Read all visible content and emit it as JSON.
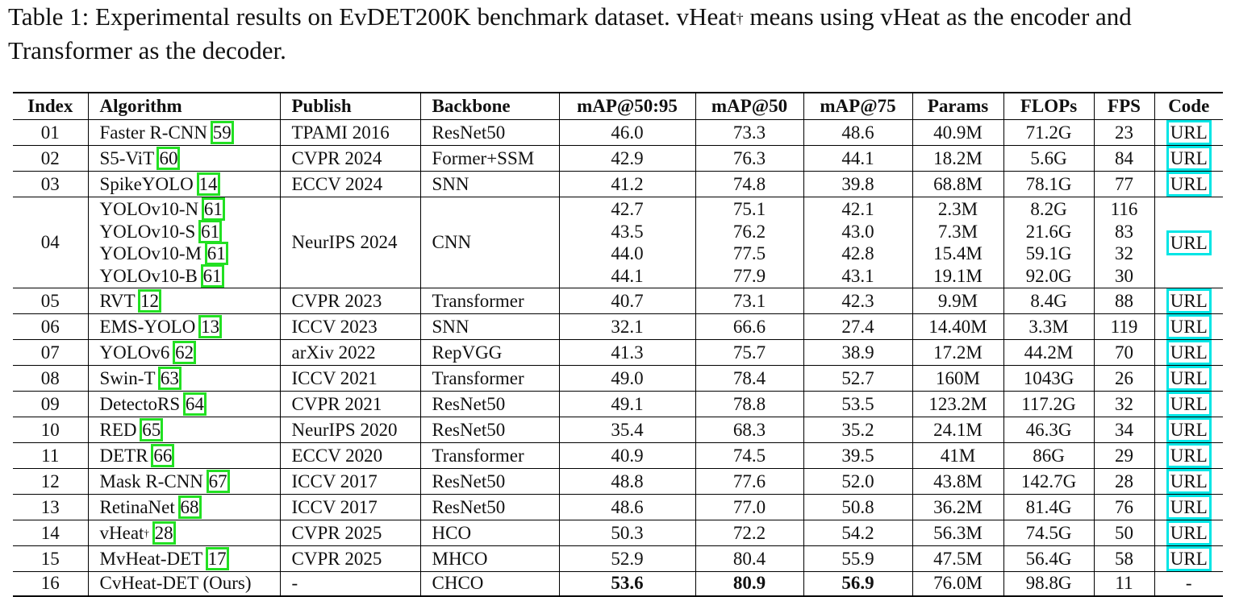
{
  "caption": {
    "text_before": "Table 1: Experimental results on EvDET200K benchmark dataset. vHeat",
    "dagger": "†",
    "text_after": " means using vHeat as the encoder and Transformer as the decoder."
  },
  "headers": {
    "index": "Index",
    "algorithm": "Algorithm",
    "publish": "Publish",
    "backbone": "Backbone",
    "map5095": "mAP@50:95",
    "map50": "mAP@50",
    "map75": "mAP@75",
    "params": "Params",
    "flops": "FLOPs",
    "fps": "FPS",
    "code": "Code"
  },
  "rows": [
    {
      "index": "01",
      "algorithm": "Faster R-CNN ",
      "ref": "59",
      "publish": "TPAMI 2016",
      "backbone": "ResNet50",
      "map5095": "46.0",
      "map50": "73.3",
      "map75": "48.6",
      "params": "40.9M",
      "flops": "71.2G",
      "fps": "23",
      "code": "URL"
    },
    {
      "index": "02",
      "algorithm": "S5-ViT ",
      "ref": "60",
      "publish": "CVPR 2024",
      "backbone": "Former+SSM",
      "map5095": "42.9",
      "map50": "76.3",
      "map75": "44.1",
      "params": "18.2M",
      "flops": "5.6G",
      "fps": "84",
      "code": "URL"
    },
    {
      "index": "03",
      "algorithm": "SpikeYOLO ",
      "ref": "14",
      "publish": "ECCV 2024",
      "backbone": "SNN",
      "map5095": "41.2",
      "map50": "74.8",
      "map75": "39.8",
      "params": "68.8M",
      "flops": "78.1G",
      "fps": "77",
      "code": "URL"
    },
    {
      "index": "04",
      "publish": "NeurIPS 2024",
      "backbone": "CNN",
      "code": "URL",
      "variants": [
        {
          "algorithm": "YOLOv10-N ",
          "ref": "61",
          "map5095": "42.7",
          "map50": "75.1",
          "map75": "42.1",
          "params": "2.3M",
          "flops": "8.2G",
          "fps": "116"
        },
        {
          "algorithm": "YOLOv10-S ",
          "ref": "61",
          "map5095": "43.5",
          "map50": "76.2",
          "map75": "43.0",
          "params": "7.3M",
          "flops": "21.6G",
          "fps": "83"
        },
        {
          "algorithm": "YOLOv10-M ",
          "ref": "61",
          "map5095": "44.0",
          "map50": "77.5",
          "map75": "42.8",
          "params": "15.4M",
          "flops": "59.1G",
          "fps": "32"
        },
        {
          "algorithm": "YOLOv10-B ",
          "ref": "61",
          "map5095": "44.1",
          "map50": "77.9",
          "map75": "43.1",
          "params": "19.1M",
          "flops": "92.0G",
          "fps": "30"
        }
      ]
    },
    {
      "index": "05",
      "algorithm": "RVT ",
      "ref": "12",
      "publish": "CVPR 2023",
      "backbone": "Transformer",
      "map5095": "40.7",
      "map50": "73.1",
      "map75": "42.3",
      "params": "9.9M",
      "flops": "8.4G",
      "fps": "88",
      "code": "URL"
    },
    {
      "index": "06",
      "algorithm": "EMS-YOLO ",
      "ref": "13",
      "publish": "ICCV 2023",
      "backbone": "SNN",
      "map5095": "32.1",
      "map50": "66.6",
      "map75": "27.4",
      "params": "14.40M",
      "flops": "3.3M",
      "fps": "119",
      "code": "URL"
    },
    {
      "index": "07",
      "algorithm": "YOLOv6 ",
      "ref": "62",
      "publish": "arXiv 2022",
      "backbone": "RepVGG",
      "map5095": "41.3",
      "map50": "75.7",
      "map75": "38.9",
      "params": "17.2M",
      "flops": "44.2M",
      "fps": "70",
      "code": "URL"
    },
    {
      "index": "08",
      "algorithm": "Swin-T ",
      "ref": "63",
      "publish": "ICCV 2021",
      "backbone": "Transformer",
      "map5095": "49.0",
      "map50": "78.4",
      "map75": "52.7",
      "params": "160M",
      "flops": "1043G",
      "fps": "26",
      "code": "URL"
    },
    {
      "index": "09",
      "algorithm": "DetectoRS ",
      "ref": "64",
      "publish": "CVPR 2021",
      "backbone": "ResNet50",
      "map5095": "49.1",
      "map50": "78.8",
      "map75": "53.5",
      "params": "123.2M",
      "flops": "117.2G",
      "fps": "32",
      "code": "URL"
    },
    {
      "index": "10",
      "algorithm": "RED ",
      "ref": "65",
      "publish": "NeurIPS 2020",
      "backbone": "ResNet50",
      "map5095": "35.4",
      "map50": "68.3",
      "map75": "35.2",
      "params": "24.1M",
      "flops": "46.3G",
      "fps": "34",
      "code": "URL"
    },
    {
      "index": "11",
      "algorithm": "DETR ",
      "ref": "66",
      "publish": "ECCV 2020",
      "backbone": "Transformer",
      "map5095": "40.9",
      "map50": "74.5",
      "map75": "39.5",
      "params": "41M",
      "flops": "86G",
      "fps": "29",
      "code": "URL"
    },
    {
      "index": "12",
      "algorithm": "Mask R-CNN ",
      "ref": "67",
      "publish": "ICCV 2017",
      "backbone": "ResNet50",
      "map5095": "48.8",
      "map50": "77.6",
      "map75": "52.0",
      "params": "43.8M",
      "flops": "142.7G",
      "fps": "28",
      "code": "URL"
    },
    {
      "index": "13",
      "algorithm": "RetinaNet ",
      "ref": "68",
      "publish": "ICCV 2017",
      "backbone": "ResNet50",
      "map5095": "48.6",
      "map50": "77.0",
      "map75": "50.8",
      "params": "36.2M",
      "flops": "81.4G",
      "fps": "76",
      "code": "URL"
    },
    {
      "index": "14",
      "algorithm": "vHeat",
      "dagger": "†",
      "ref": "28",
      "publish": "CVPR 2025",
      "backbone": "HCO",
      "map5095": "50.3",
      "map50": "72.2",
      "map75": "54.2",
      "params": "56.3M",
      "flops": "74.5G",
      "fps": "50",
      "code": "URL"
    },
    {
      "index": "15",
      "algorithm": "MvHeat-DET ",
      "ref": "17",
      "publish": "CVPR 2025",
      "backbone": "MHCO",
      "map5095": "52.9",
      "map50": "80.4",
      "map75": "55.9",
      "params": "47.5M",
      "flops": "56.4G",
      "fps": "58",
      "code": "URL"
    },
    {
      "index": "16",
      "algorithm": "CvHeat-DET (Ours)",
      "publish": "-",
      "backbone": "CHCO",
      "map5095": "53.6",
      "map50": "80.9",
      "map75": "56.9",
      "params": "76.0M",
      "flops": "98.8G",
      "fps": "11",
      "code": "-",
      "best": true
    }
  ]
}
